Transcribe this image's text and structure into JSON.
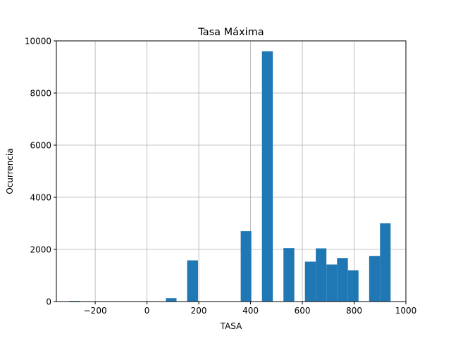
{
  "chart_data": {
    "type": "bar",
    "title": "Tasa Máxima",
    "xlabel": "TASA",
    "ylabel": "Ocurrencia",
    "xlim": [
      -350,
      1000
    ],
    "ylim": [
      0,
      10000
    ],
    "grid": true,
    "x_ticks": [
      -200,
      0,
      200,
      400,
      600,
      800,
      1000
    ],
    "x_tick_labels": [
      "−200",
      "0",
      "200",
      "400",
      "600",
      "800",
      "1000"
    ],
    "y_ticks": [
      0,
      2000,
      4000,
      6000,
      8000,
      10000
    ],
    "y_tick_labels": [
      "0",
      "2000",
      "4000",
      "6000",
      "8000",
      "10000"
    ],
    "bar_color": "#1f77b4",
    "bins": [
      {
        "x0": -301,
        "x1": -260,
        "value": 25
      },
      {
        "x0": 73,
        "x1": 114,
        "value": 130
      },
      {
        "x0": 155,
        "x1": 197,
        "value": 1580
      },
      {
        "x0": 362,
        "x1": 403,
        "value": 2700
      },
      {
        "x0": 444,
        "x1": 486,
        "value": 9600
      },
      {
        "x0": 527,
        "x1": 569,
        "value": 2050
      },
      {
        "x0": 610,
        "x1": 652,
        "value": 1530
      },
      {
        "x0": 652,
        "x1": 693,
        "value": 2040
      },
      {
        "x0": 693,
        "x1": 734,
        "value": 1420
      },
      {
        "x0": 734,
        "x1": 776,
        "value": 1670
      },
      {
        "x0": 776,
        "x1": 817,
        "value": 1200
      },
      {
        "x0": 858,
        "x1": 900,
        "value": 1750
      },
      {
        "x0": 900,
        "x1": 941,
        "value": 3000
      }
    ]
  }
}
